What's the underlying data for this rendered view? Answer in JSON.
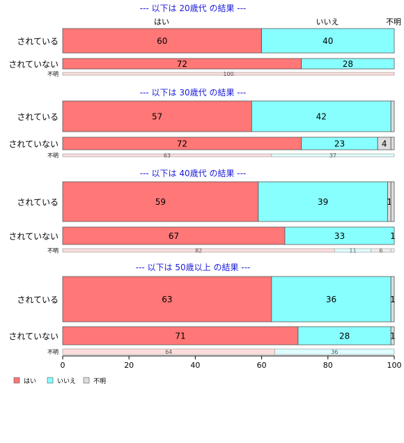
{
  "chart_data": {
    "type": "bar",
    "orientation": "horizontal",
    "stacked": true,
    "xlim": [
      0,
      100
    ],
    "x_ticks": [
      "0",
      "20",
      "40",
      "60",
      "80",
      "100"
    ],
    "legend": {
      "placement": "bottom-left",
      "entries": [
        "はい",
        "いいえ",
        "不明"
      ]
    },
    "column_labels": [
      "はい",
      "いいえ",
      "不明"
    ],
    "colors": {
      "yes": "#ff7777",
      "no": "#88ffff",
      "unknown": "#dddddd",
      "yes_light": "#ffdddd",
      "no_light": "#ddffff",
      "unknown_light": "#eeeeee",
      "title": "#1a1adb"
    },
    "groups": [
      {
        "title": "--- 以下は 20歳代 の結果 ---",
        "rows": [
          {
            "label": "されている",
            "values": [
              60,
              40,
              0
            ],
            "labels": [
              "60",
              "40",
              ""
            ]
          },
          {
            "label": "されていない",
            "values": [
              72,
              28,
              0
            ],
            "labels": [
              "72",
              "28",
              ""
            ]
          },
          {
            "label": "不明",
            "values": [
              100,
              0,
              0
            ],
            "labels": [
              "100",
              "",
              ""
            ]
          }
        ]
      },
      {
        "title": "--- 以下は 30歳代 の結果 ---",
        "rows": [
          {
            "label": "されている",
            "values": [
              57,
              42,
              0
            ],
            "labels": [
              "57",
              "42",
              ""
            ]
          },
          {
            "label": "されていない",
            "values": [
              72,
              23,
              4
            ],
            "labels": [
              "72",
              "23",
              "4"
            ]
          },
          {
            "label": "不明",
            "values": [
              63,
              37,
              0
            ],
            "labels": [
              "63",
              "37",
              ""
            ]
          }
        ]
      },
      {
        "title": "--- 以下は 40歳代 の結果 ---",
        "rows": [
          {
            "label": "されている",
            "values": [
              59,
              39,
              1
            ],
            "labels": [
              "59",
              "39",
              "1"
            ]
          },
          {
            "label": "されていない",
            "values": [
              67,
              33,
              1
            ],
            "labels": [
              "67",
              "33",
              "1"
            ]
          },
          {
            "label": "不明",
            "values": [
              82,
              11,
              6
            ],
            "labels": [
              "82",
              "11",
              "6"
            ]
          }
        ]
      },
      {
        "title": "--- 以下は 50歳以上 の結果 ---",
        "rows": [
          {
            "label": "されている",
            "values": [
              63,
              36,
              1
            ],
            "labels": [
              "63",
              "36",
              "1"
            ]
          },
          {
            "label": "されていない",
            "values": [
              71,
              28,
              1
            ],
            "labels": [
              "71",
              "28",
              "1"
            ]
          },
          {
            "label": "不明",
            "values": [
              64,
              36,
              0
            ],
            "labels": [
              "64",
              "36",
              ""
            ]
          }
        ]
      }
    ]
  }
}
